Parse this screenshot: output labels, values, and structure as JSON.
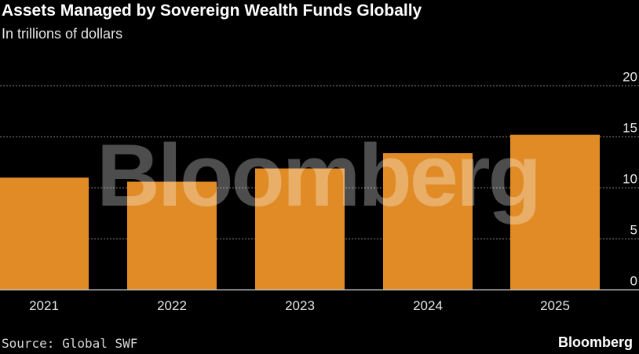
{
  "chart_data": {
    "type": "bar",
    "title": "Assets Managed by Sovereign Wealth Funds Globally",
    "subtitle": "In trillions of dollars",
    "categories": [
      "2021",
      "2022",
      "2023",
      "2024",
      "2025"
    ],
    "values": [
      11.0,
      10.6,
      11.9,
      13.4,
      15.2
    ],
    "xlabel": "",
    "ylabel": "",
    "ylim": [
      0,
      20
    ],
    "yticks": [
      0,
      5,
      10,
      15,
      20
    ],
    "ytick_labels": [
      "0",
      "5",
      "10",
      "15",
      "20"
    ],
    "grid": true,
    "bar_color": "#e08b26",
    "source": "Source: Global SWF",
    "watermark": "Bloomberg"
  },
  "branding": "Bloomberg"
}
